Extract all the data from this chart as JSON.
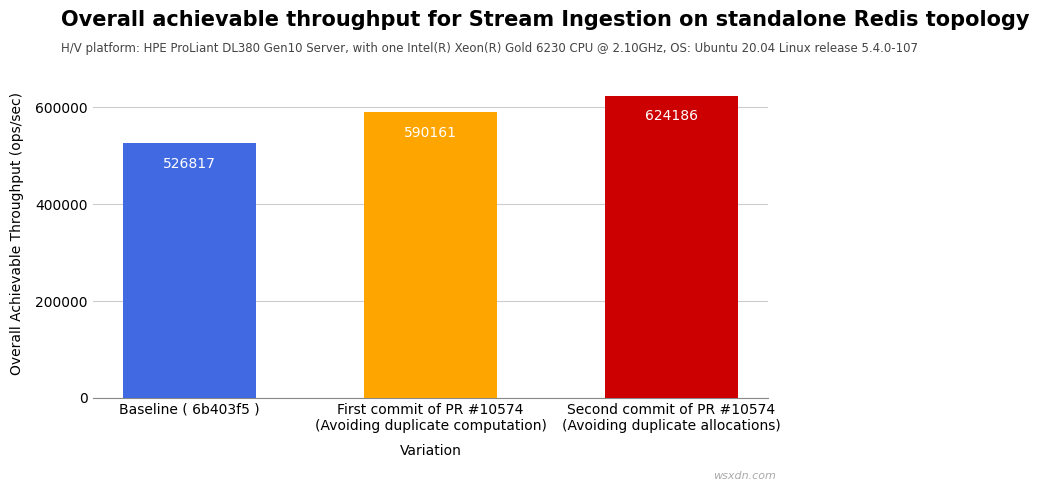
{
  "title": "Overall achievable throughput for Stream Ingestion on standalone Redis topology",
  "subtitle": "H/V platform: HPE ProLiant DL380 Gen10 Server, with one Intel(R) Xeon(R) Gold 6230 CPU @ 2.10GHz, OS: Ubuntu 20.04 Linux release 5.4.0-107",
  "categories": [
    "Baseline ( 6b403f5 )",
    "First commit of PR #10574\n(Avoiding duplicate computation)",
    "Second commit of PR #10574\n(Avoiding duplicate allocations)"
  ],
  "values": [
    526817,
    590161,
    624186
  ],
  "bar_colors": [
    "#4169E1",
    "#FFA500",
    "#CC0000"
  ],
  "xlabel": "Variation",
  "ylabel": "Overall Achievable Throughput (ops/sec)",
  "ylim": [
    0,
    680000
  ],
  "yticks": [
    0,
    200000,
    400000,
    600000
  ],
  "background_color": "#ffffff",
  "grid_color": "#cccccc",
  "title_fontsize": 15,
  "subtitle_fontsize": 8.5,
  "label_fontsize": 10,
  "tick_fontsize": 10,
  "value_fontsize": 10,
  "watermark": "wsxdn.com"
}
